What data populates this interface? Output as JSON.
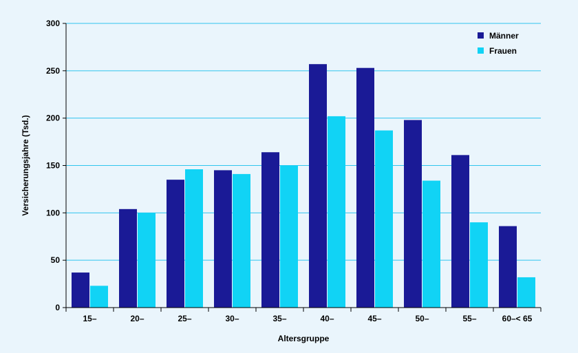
{
  "chart_data": {
    "type": "bar",
    "title": "",
    "xlabel": "Altersgruppe",
    "ylabel": "Versicherungsjahre (Tsd.)",
    "ylim": [
      0,
      300
    ],
    "yticks": [
      0,
      50,
      100,
      150,
      200,
      250,
      300
    ],
    "grid": true,
    "legend_position": "top-right",
    "categories": [
      "15–",
      "20–",
      "25–",
      "30–",
      "35–",
      "40–",
      "45–",
      "50–",
      "55–",
      "60–< 65"
    ],
    "series": [
      {
        "name": "Männer",
        "color": "#1a1a96",
        "values": [
          37,
          104,
          135,
          145,
          164,
          257,
          253,
          198,
          161,
          86
        ]
      },
      {
        "name": "Frauen",
        "color": "#11d3f5",
        "values": [
          23,
          100,
          146,
          141,
          150,
          202,
          187,
          134,
          90,
          32
        ]
      }
    ],
    "colors": {
      "background": "#eaf5fc",
      "gridline": "#2ec4ee",
      "axis": "#000000"
    }
  }
}
